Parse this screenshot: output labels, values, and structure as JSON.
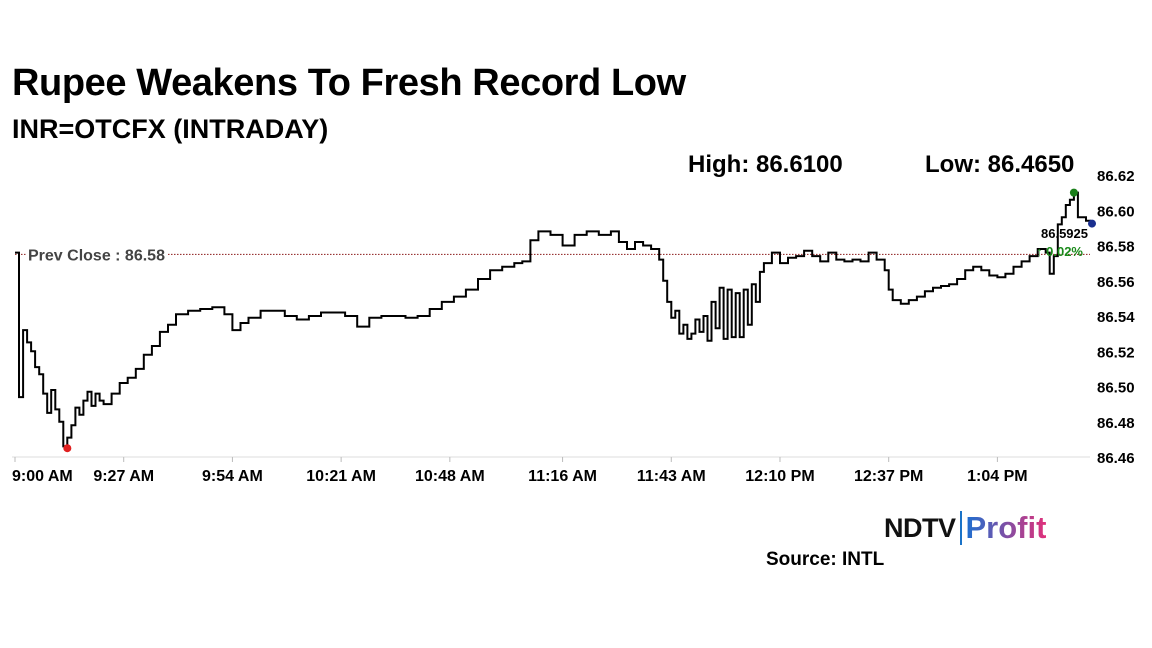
{
  "header": {
    "title": "Rupee Weakens To Fresh Record Low",
    "subtitle": "INR=OTCFX (INTRADAY)",
    "high": "High: 86.6100",
    "low": "Low: 86.4650"
  },
  "footer": {
    "brand_ndtv": "NDTV",
    "brand_profit": "Profit",
    "source": "Source: INTL"
  },
  "colors": {
    "line": "#000000",
    "prev_close": "#8b1a1a",
    "high_marker": "#1a7f1a",
    "low_marker": "#e02020",
    "last_marker": "#1a2f8f",
    "change_up": "#1a8a1a"
  },
  "chart_data": {
    "type": "line",
    "title": "Rupee Weakens To Fresh Record Low",
    "series": [
      {
        "values": [
          [
            0,
            86.576
          ],
          [
            1,
            86.494
          ],
          [
            2,
            86.532
          ],
          [
            3,
            86.525
          ],
          [
            4,
            86.52
          ],
          [
            5,
            86.511
          ],
          [
            6,
            86.507
          ],
          [
            7,
            86.496
          ],
          [
            8,
            86.485
          ],
          [
            9,
            86.498
          ],
          [
            10,
            86.487
          ],
          [
            11,
            86.48
          ],
          [
            12,
            86.466
          ],
          [
            13,
            86.471
          ],
          [
            14,
            86.478
          ],
          [
            15,
            86.488
          ],
          [
            16,
            86.484
          ],
          [
            17,
            86.492
          ],
          [
            18,
            86.497
          ],
          [
            19,
            86.489
          ],
          [
            20,
            86.496
          ],
          [
            21,
            86.492
          ],
          [
            22,
            86.49
          ],
          [
            24,
            86.496
          ],
          [
            26,
            86.502
          ],
          [
            28,
            86.505
          ],
          [
            30,
            86.51
          ],
          [
            32,
            86.518
          ],
          [
            34,
            86.523
          ],
          [
            36,
            86.531
          ],
          [
            38,
            86.535
          ],
          [
            40,
            86.541
          ],
          [
            43,
            86.543
          ],
          [
            46,
            86.544
          ],
          [
            49,
            86.545
          ],
          [
            52,
            86.541
          ],
          [
            54,
            86.532
          ],
          [
            56,
            86.536
          ],
          [
            58,
            86.539
          ],
          [
            61,
            86.543
          ],
          [
            64,
            86.543
          ],
          [
            67,
            86.54
          ],
          [
            70,
            86.538
          ],
          [
            73,
            86.54
          ],
          [
            76,
            86.542
          ],
          [
            79,
            86.542
          ],
          [
            82,
            86.54
          ],
          [
            85,
            86.534
          ],
          [
            88,
            86.539
          ],
          [
            91,
            86.54
          ],
          [
            94,
            86.54
          ],
          [
            97,
            86.539
          ],
          [
            100,
            86.54
          ],
          [
            103,
            86.544
          ],
          [
            106,
            86.548
          ],
          [
            109,
            86.551
          ],
          [
            112,
            86.555
          ],
          [
            115,
            86.561
          ],
          [
            118,
            86.566
          ],
          [
            121,
            86.568
          ],
          [
            124,
            86.57
          ],
          [
            126,
            86.571
          ],
          [
            128,
            86.583
          ],
          [
            130,
            86.588
          ],
          [
            133,
            86.586
          ],
          [
            136,
            86.58
          ],
          [
            139,
            86.586
          ],
          [
            142,
            86.588
          ],
          [
            145,
            86.586
          ],
          [
            148,
            86.588
          ],
          [
            150,
            86.582
          ],
          [
            152,
            86.578
          ],
          [
            154,
            86.582
          ],
          [
            156,
            86.58
          ],
          [
            158,
            86.578
          ],
          [
            160,
            86.572
          ],
          [
            161,
            86.56
          ],
          [
            162,
            86.548
          ],
          [
            163,
            86.539
          ],
          [
            164,
            86.543
          ],
          [
            165,
            86.53
          ],
          [
            166,
            86.535
          ],
          [
            167,
            86.527
          ],
          [
            168,
            86.53
          ],
          [
            169,
            86.538
          ],
          [
            170,
            86.531
          ],
          [
            171,
            86.54
          ],
          [
            172,
            86.526
          ],
          [
            173,
            86.548
          ],
          [
            174,
            86.533
          ],
          [
            175,
            86.556
          ],
          [
            176,
            86.527
          ],
          [
            177,
            86.555
          ],
          [
            178,
            86.528
          ],
          [
            179,
            86.553
          ],
          [
            180,
            86.528
          ],
          [
            181,
            86.555
          ],
          [
            182,
            86.535
          ],
          [
            183,
            86.558
          ],
          [
            184,
            86.548
          ],
          [
            185,
            86.565
          ],
          [
            186,
            86.57
          ],
          [
            188,
            86.576
          ],
          [
            190,
            86.57
          ],
          [
            192,
            86.573
          ],
          [
            194,
            86.574
          ],
          [
            196,
            86.577
          ],
          [
            198,
            86.574
          ],
          [
            200,
            86.571
          ],
          [
            202,
            86.576
          ],
          [
            204,
            86.572
          ],
          [
            206,
            86.571
          ],
          [
            208,
            86.572
          ],
          [
            210,
            86.571
          ],
          [
            212,
            86.576
          ],
          [
            214,
            86.572
          ],
          [
            216,
            86.566
          ],
          [
            217,
            86.555
          ],
          [
            218,
            86.549
          ],
          [
            220,
            86.547
          ],
          [
            222,
            86.549
          ],
          [
            224,
            86.551
          ],
          [
            226,
            86.554
          ],
          [
            228,
            86.556
          ],
          [
            230,
            86.557
          ],
          [
            232,
            86.558
          ],
          [
            234,
            86.561
          ],
          [
            236,
            86.566
          ],
          [
            238,
            86.568
          ],
          [
            240,
            86.566
          ],
          [
            242,
            86.563
          ],
          [
            244,
            86.562
          ],
          [
            246,
            86.564
          ],
          [
            248,
            86.568
          ],
          [
            250,
            86.571
          ],
          [
            252,
            86.574
          ],
          [
            254,
            86.578
          ],
          [
            256,
            86.576
          ],
          [
            257,
            86.564
          ],
          [
            258,
            86.574
          ],
          [
            259,
            86.592
          ],
          [
            260,
            86.596
          ],
          [
            261,
            86.603
          ],
          [
            262,
            86.606
          ],
          [
            263,
            86.61
          ],
          [
            264,
            86.596
          ],
          [
            265,
            86.596
          ],
          [
            266,
            86.594
          ],
          [
            267,
            86.593
          ]
        ]
      }
    ],
    "x_minutes_from": "9:00 AM",
    "xlim": [
      0,
      267
    ],
    "ylim": [
      86.46,
      86.62
    ],
    "x_ticks": [
      {
        "min": 0,
        "label": "9:00 AM"
      },
      {
        "min": 27,
        "label": "9:27 AM"
      },
      {
        "min": 54,
        "label": "9:54 AM"
      },
      {
        "min": 81,
        "label": "10:21 AM"
      },
      {
        "min": 108,
        "label": "10:48 AM"
      },
      {
        "min": 136,
        "label": "11:16 AM"
      },
      {
        "min": 163,
        "label": "11:43 AM"
      },
      {
        "min": 190,
        "label": "12:10 PM"
      },
      {
        "min": 217,
        "label": "12:37 PM"
      },
      {
        "min": 244,
        "label": "1:04 PM"
      }
    ],
    "y_ticks": [
      "86.62",
      "86.60",
      "86.58",
      "86.56",
      "86.54",
      "86.52",
      "86.50",
      "86.48",
      "86.46"
    ],
    "prev_close": {
      "value": 86.575,
      "label": "Prev Close : 86.58"
    },
    "last": {
      "value": "86.5925",
      "change": "↑ 0.02%"
    },
    "high_point": {
      "min": 263,
      "value": 86.61
    },
    "low_point": {
      "min": 13,
      "value": 86.465
    },
    "grid": false,
    "legend": "none"
  }
}
